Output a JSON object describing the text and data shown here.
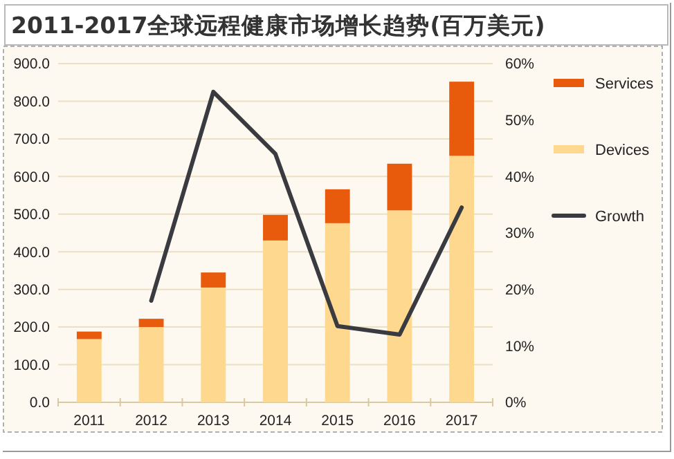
{
  "chart_data": {
    "type": "bar",
    "title": "2011-2017全球远程健康市场增长趋势(百万美元)",
    "categories": [
      "2011",
      "2012",
      "2013",
      "2014",
      "2015",
      "2016",
      "2017"
    ],
    "stacked": true,
    "series": [
      {
        "name": "Devices",
        "color": "#fdd88e",
        "values": [
          168,
          200,
          305,
          430,
          476,
          510,
          655
        ]
      },
      {
        "name": "Services",
        "color": "#e85b0c",
        "values": [
          20,
          22,
          40,
          68,
          90,
          124,
          197
        ]
      },
      {
        "name": "Growth",
        "type": "line",
        "axis": "y2",
        "color": "#3a3b40",
        "values": [
          null,
          18,
          55,
          44,
          13.5,
          12,
          34.5
        ]
      }
    ],
    "ylim": [
      0,
      900
    ],
    "yticks": [
      {
        "value": 0,
        "label": "0.0"
      },
      {
        "value": 100,
        "label": "100.0"
      },
      {
        "value": 200,
        "label": "200.0"
      },
      {
        "value": 300,
        "label": "300.0"
      },
      {
        "value": 400,
        "label": "400.0"
      },
      {
        "value": 500,
        "label": "500.0"
      },
      {
        "value": 600,
        "label": "600.0"
      },
      {
        "value": 700,
        "label": "700.0"
      },
      {
        "value": 800,
        "label": "800.0"
      },
      {
        "value": 900,
        "label": "900.0"
      }
    ],
    "y2lim": [
      0,
      60
    ],
    "y2ticks": [
      {
        "value": 0,
        "label": "0%"
      },
      {
        "value": 10,
        "label": "10%"
      },
      {
        "value": 20,
        "label": "20%"
      },
      {
        "value": 30,
        "label": "30%"
      },
      {
        "value": 40,
        "label": "40%"
      },
      {
        "value": 50,
        "label": "50%"
      },
      {
        "value": 60,
        "label": "60%"
      }
    ],
    "grid": "y",
    "legend": "right"
  }
}
